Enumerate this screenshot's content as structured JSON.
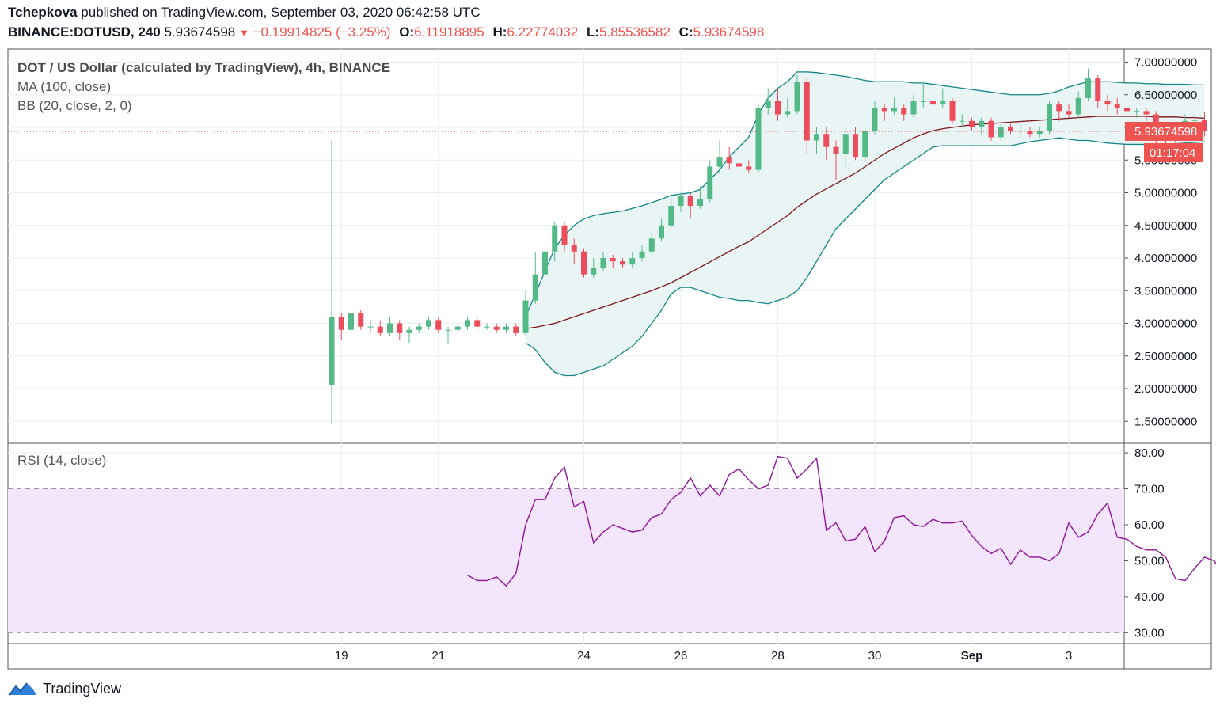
{
  "header": {
    "author": "Tchepkova",
    "published": " published on TradingView.com, September 03, 2020 06:42:58 UTC",
    "symbol": "BINANCE:DOTUSD, 240",
    "last": "5.93674598",
    "change": "−0.19914825 (−3.25%)",
    "o_label": "O:",
    "o": "6.11918895",
    "h_label": "H:",
    "h": "6.22774032",
    "l_label": "L:",
    "l": "5.85536582",
    "c_label": "C:",
    "c": "5.93674598"
  },
  "legend": {
    "title": "DOT / US Dollar (calculated by TradingView), 4h, BINANCE",
    "ma": "MA (100, close)",
    "bb": "BB (20, close, 2, 0)",
    "rsi": "RSI (14, close)"
  },
  "price_tag": "5.93674598",
  "timer_tag": "01:17:04",
  "footer": {
    "brand": "TradingView"
  },
  "colors": {
    "up": "#53b987",
    "down": "#eb4d5c",
    "bb": "#138484",
    "bb_fill": "#e9f5f4",
    "ma": "#7b1516",
    "rsi": "#8e1599",
    "rsi_band": "#f3e5fb",
    "grid": "#e8eef2",
    "price_line": "#ef5350"
  },
  "chart_data": [
    {
      "type": "candlestick",
      "title": "DOT / US Dollar (calculated by TradingView), 4h, BINANCE",
      "ylim": [
        1.2,
        7.2
      ],
      "yticks": [
        "1.50000000",
        "2.00000000",
        "2.50000000",
        "3.00000000",
        "3.50000000",
        "4.00000000",
        "4.50000000",
        "5.00000000",
        "5.50000000",
        "6.00000000",
        "6.50000000",
        "7.00000000"
      ],
      "ytick_values": [
        1.5,
        2,
        2.5,
        3,
        3.5,
        4,
        4.5,
        5,
        5.5,
        6,
        6.5,
        7
      ],
      "x_labels": [
        "19",
        "21",
        "24",
        "26",
        "28",
        "30",
        "Sep",
        "3"
      ],
      "x_label_index": [
        1,
        11,
        26,
        36,
        46,
        56,
        66,
        76
      ],
      "ohlc": [
        [
          2.05,
          3.1,
          1.45,
          5.8
        ],
        [
          3.1,
          2.9,
          2.75,
          3.15
        ],
        [
          2.9,
          3.15,
          2.85,
          3.2
        ],
        [
          3.15,
          2.95,
          2.9,
          3.2
        ],
        [
          2.95,
          2.95,
          2.85,
          3.05
        ],
        [
          2.95,
          2.85,
          2.8,
          3.05
        ],
        [
          2.85,
          3.0,
          2.8,
          3.1
        ],
        [
          3.0,
          2.85,
          2.75,
          3.05
        ],
        [
          2.85,
          2.9,
          2.7,
          2.95
        ],
        [
          2.9,
          2.95,
          2.85,
          3.0
        ],
        [
          2.95,
          3.05,
          2.9,
          3.1
        ],
        [
          3.05,
          2.9,
          2.85,
          3.1
        ],
        [
          2.9,
          2.9,
          2.7,
          2.95
        ],
        [
          2.9,
          2.95,
          2.85,
          3.0
        ],
        [
          2.95,
          3.05,
          2.9,
          3.1
        ],
        [
          3.05,
          2.95,
          2.9,
          3.1
        ],
        [
          2.95,
          2.95,
          2.9,
          3.0
        ],
        [
          2.95,
          2.9,
          2.85,
          3.0
        ],
        [
          2.9,
          2.95,
          2.85,
          3.0
        ],
        [
          2.95,
          2.85,
          2.8,
          3.0
        ],
        [
          2.85,
          3.35,
          2.8,
          3.5
        ],
        [
          3.35,
          3.75,
          3.3,
          4.1
        ],
        [
          3.75,
          4.1,
          3.7,
          4.4
        ],
        [
          4.1,
          4.5,
          3.95,
          4.55
        ],
        [
          4.5,
          4.2,
          4.1,
          4.55
        ],
        [
          4.2,
          4.1,
          3.9,
          4.3
        ],
        [
          4.1,
          3.75,
          3.7,
          4.15
        ],
        [
          3.75,
          3.85,
          3.7,
          4.0
        ],
        [
          3.85,
          4.0,
          3.8,
          4.1
        ],
        [
          4.0,
          3.95,
          3.85,
          4.05
        ],
        [
          3.95,
          3.9,
          3.85,
          4.0
        ],
        [
          3.9,
          4.0,
          3.85,
          4.1
        ],
        [
          4.0,
          4.1,
          3.95,
          4.2
        ],
        [
          4.1,
          4.3,
          4.05,
          4.4
        ],
        [
          4.3,
          4.5,
          4.25,
          4.6
        ],
        [
          4.5,
          4.8,
          4.45,
          4.9
        ],
        [
          4.8,
          4.95,
          4.7,
          5.0
        ],
        [
          4.95,
          4.8,
          4.6,
          5.0
        ],
        [
          4.8,
          4.9,
          4.75,
          5.1
        ],
        [
          4.9,
          5.4,
          4.85,
          5.5
        ],
        [
          5.4,
          5.55,
          5.3,
          5.8
        ],
        [
          5.55,
          5.45,
          5.35,
          5.7
        ],
        [
          5.45,
          5.4,
          5.1,
          5.6
        ],
        [
          5.4,
          5.35,
          5.3,
          5.5
        ],
        [
          5.35,
          6.3,
          5.3,
          6.35
        ],
        [
          6.3,
          6.4,
          6.2,
          6.6
        ],
        [
          6.4,
          6.2,
          6.1,
          6.6
        ],
        [
          6.2,
          6.25,
          6.15,
          6.45
        ],
        [
          6.25,
          6.7,
          6.2,
          6.8
        ],
        [
          6.7,
          5.8,
          5.6,
          6.75
        ],
        [
          5.8,
          5.9,
          5.6,
          6.0
        ],
        [
          5.9,
          5.7,
          5.5,
          6.0
        ],
        [
          5.7,
          5.6,
          5.2,
          5.8
        ],
        [
          5.6,
          5.9,
          5.4,
          6.0
        ],
        [
          5.9,
          5.55,
          5.5,
          6.0
        ],
        [
          5.55,
          5.95,
          5.5,
          6.0
        ],
        [
          5.95,
          6.3,
          5.9,
          6.4
        ],
        [
          6.3,
          6.25,
          6.1,
          6.35
        ],
        [
          6.25,
          6.3,
          6.2,
          6.45
        ],
        [
          6.3,
          6.2,
          6.1,
          6.35
        ],
        [
          6.2,
          6.4,
          6.15,
          6.5
        ],
        [
          6.4,
          6.4,
          6.3,
          6.7
        ],
        [
          6.4,
          6.35,
          6.25,
          6.45
        ],
        [
          6.35,
          6.4,
          6.3,
          6.6
        ],
        [
          6.4,
          6.1,
          6.05,
          6.45
        ],
        [
          6.1,
          6.1,
          6.0,
          6.2
        ],
        [
          6.1,
          6.0,
          5.95,
          6.15
        ],
        [
          6.0,
          6.1,
          5.9,
          6.15
        ],
        [
          6.1,
          5.85,
          5.8,
          6.15
        ],
        [
          5.85,
          6.0,
          5.8,
          6.05
        ],
        [
          6.0,
          5.95,
          5.9,
          6.05
        ],
        [
          5.95,
          5.95,
          5.85,
          6.05
        ],
        [
          5.95,
          5.9,
          5.85,
          6.0
        ],
        [
          5.9,
          5.95,
          5.85,
          6.0
        ],
        [
          5.95,
          6.35,
          5.9,
          6.4
        ],
        [
          6.35,
          6.25,
          6.1,
          6.4
        ],
        [
          6.25,
          6.2,
          6.15,
          6.35
        ],
        [
          6.2,
          6.45,
          6.15,
          6.55
        ],
        [
          6.45,
          6.75,
          6.4,
          6.9
        ],
        [
          6.75,
          6.4,
          6.3,
          6.8
        ],
        [
          6.4,
          6.35,
          6.25,
          6.5
        ],
        [
          6.35,
          6.3,
          6.2,
          6.45
        ],
        [
          6.3,
          6.25,
          6.15,
          6.45
        ],
        [
          6.25,
          6.25,
          6.15,
          6.3
        ],
        [
          6.25,
          6.2,
          6.1,
          6.3
        ],
        [
          6.2,
          5.95,
          5.5,
          6.25
        ],
        [
          5.95,
          5.9,
          5.75,
          6.0
        ],
        [
          5.9,
          6.0,
          5.75,
          6.05
        ],
        [
          6.0,
          6.1,
          5.95,
          6.2
        ],
        [
          6.1,
          6.12,
          6.0,
          6.2
        ],
        [
          6.12,
          5.94,
          5.86,
          6.23
        ]
      ],
      "ma": [
        null,
        null,
        null,
        null,
        null,
        null,
        null,
        null,
        null,
        null,
        null,
        null,
        null,
        null,
        null,
        null,
        null,
        null,
        null,
        null,
        2.92,
        2.94,
        2.97,
        3.0,
        3.05,
        3.1,
        3.15,
        3.2,
        3.25,
        3.3,
        3.35,
        3.4,
        3.45,
        3.5,
        3.56,
        3.62,
        3.7,
        3.78,
        3.86,
        3.94,
        4.02,
        4.1,
        4.18,
        4.25,
        4.35,
        4.45,
        4.55,
        4.65,
        4.78,
        4.88,
        4.98,
        5.06,
        5.14,
        5.22,
        5.3,
        5.4,
        5.5,
        5.6,
        5.68,
        5.76,
        5.84,
        5.9,
        5.95,
        5.98,
        6.0,
        6.02,
        6.04,
        6.05,
        6.06,
        6.07,
        6.08,
        6.09,
        6.1,
        6.11,
        6.12,
        6.13,
        6.14,
        6.15,
        6.16,
        6.17,
        6.17,
        6.17,
        6.17,
        6.17,
        6.17,
        6.16,
        6.16,
        6.16,
        6.15,
        6.15,
        6.14
      ],
      "bb_upper": [
        null,
        null,
        null,
        null,
        null,
        null,
        null,
        null,
        null,
        null,
        null,
        null,
        null,
        null,
        null,
        null,
        null,
        null,
        null,
        null,
        3.1,
        3.45,
        3.8,
        4.15,
        4.35,
        4.5,
        4.6,
        4.65,
        4.68,
        4.7,
        4.72,
        4.76,
        4.8,
        4.85,
        4.9,
        4.96,
        4.98,
        5.0,
        5.05,
        5.2,
        5.35,
        5.55,
        5.7,
        5.85,
        6.2,
        6.45,
        6.6,
        6.7,
        6.85,
        6.85,
        6.84,
        6.82,
        6.8,
        6.78,
        6.75,
        6.72,
        6.7,
        6.7,
        6.7,
        6.7,
        6.68,
        6.68,
        6.66,
        6.64,
        6.62,
        6.6,
        6.58,
        6.56,
        6.54,
        6.52,
        6.5,
        6.5,
        6.5,
        6.5,
        6.52,
        6.56,
        6.62,
        6.66,
        6.7,
        6.7,
        6.7,
        6.69,
        6.68,
        6.68,
        6.67,
        6.67,
        6.66,
        6.66,
        6.66,
        6.65,
        6.65
      ],
      "bb_lower": [
        null,
        null,
        null,
        null,
        null,
        null,
        null,
        null,
        null,
        null,
        null,
        null,
        null,
        null,
        null,
        null,
        null,
        null,
        null,
        null,
        2.7,
        2.6,
        2.4,
        2.25,
        2.2,
        2.2,
        2.25,
        2.3,
        2.35,
        2.45,
        2.55,
        2.65,
        2.8,
        3.0,
        3.2,
        3.45,
        3.55,
        3.55,
        3.5,
        3.45,
        3.4,
        3.38,
        3.35,
        3.35,
        3.32,
        3.3,
        3.35,
        3.4,
        3.5,
        3.7,
        3.95,
        4.2,
        4.45,
        4.6,
        4.75,
        4.9,
        5.05,
        5.2,
        5.3,
        5.4,
        5.5,
        5.6,
        5.7,
        5.72,
        5.72,
        5.72,
        5.72,
        5.72,
        5.72,
        5.72,
        5.72,
        5.75,
        5.78,
        5.8,
        5.82,
        5.84,
        5.82,
        5.8,
        5.8,
        5.78,
        5.76,
        5.75,
        5.74,
        5.74,
        5.74,
        5.74,
        5.74,
        5.75,
        5.76,
        5.77,
        5.78
      ]
    },
    {
      "type": "line",
      "title": "RSI (14, close)",
      "ylim": [
        27,
        82
      ],
      "yticks": [
        "30.00",
        "40.00",
        "50.00",
        "60.00",
        "70.00",
        "80.00"
      ],
      "ytick_values": [
        30,
        40,
        50,
        60,
        70,
        80
      ],
      "band": [
        30,
        70
      ],
      "series": [
        {
          "values": [
            null,
            null,
            null,
            null,
            null,
            null,
            null,
            null,
            null,
            null,
            null,
            null,
            null,
            null,
            46,
            44.5,
            44.5,
            45.5,
            43,
            46.5,
            60,
            67,
            67,
            73,
            76,
            65,
            66.5,
            55,
            58,
            60,
            59,
            58,
            58.5,
            62,
            63,
            67,
            69,
            73,
            68,
            71,
            68,
            74,
            75.5,
            72.5,
            70,
            71,
            79,
            78.5,
            73,
            75.5,
            78.5,
            58.5,
            60.5,
            55.5,
            56,
            59.5,
            52.5,
            55.5,
            62,
            62.5,
            60,
            59.5,
            61.5,
            60.5,
            60.5,
            61,
            57,
            54,
            52,
            53.5,
            49,
            53,
            51,
            51,
            50,
            52,
            60.5,
            56.5,
            58,
            63,
            66,
            56.5,
            56,
            54,
            53,
            53,
            51,
            45,
            44.5,
            48,
            51,
            50,
            45.5
          ]
        }
      ]
    }
  ]
}
